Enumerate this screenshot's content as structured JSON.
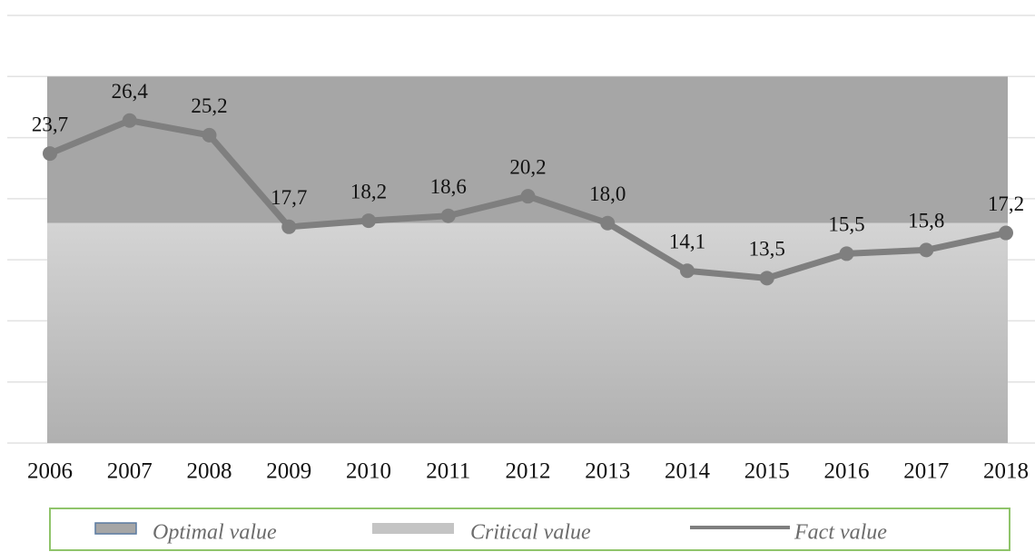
{
  "chart_data": {
    "type": "line",
    "categories": [
      "2006",
      "2007",
      "2008",
      "2009",
      "2010",
      "2011",
      "2012",
      "2013",
      "2014",
      "2015",
      "2016",
      "2017",
      "2018"
    ],
    "bands": [
      {
        "name": "Optimal value",
        "color": "#a6a6a6",
        "range": [
          18,
          30
        ]
      },
      {
        "name": "Critical value",
        "color": "#c4c4c4",
        "range": [
          0,
          18
        ]
      }
    ],
    "series": [
      {
        "name": "Fact value",
        "color": "#7f7f7f",
        "values": [
          23.7,
          26.4,
          25.2,
          17.7,
          18.2,
          18.6,
          20.2,
          18.0,
          14.1,
          13.5,
          15.5,
          15.8,
          17.2
        ],
        "value_labels": [
          "23,7",
          "26,4",
          "25,2",
          "17,7",
          "18,2",
          "18,6",
          "20,2",
          "18,0",
          "14,1",
          "13,5",
          "15,5",
          "15,8",
          "17,2"
        ]
      }
    ],
    "ylim": [
      0,
      35
    ],
    "yticks": [
      0,
      5,
      10,
      15,
      20,
      25,
      30,
      35
    ],
    "grid": true,
    "legend": "bottom"
  }
}
